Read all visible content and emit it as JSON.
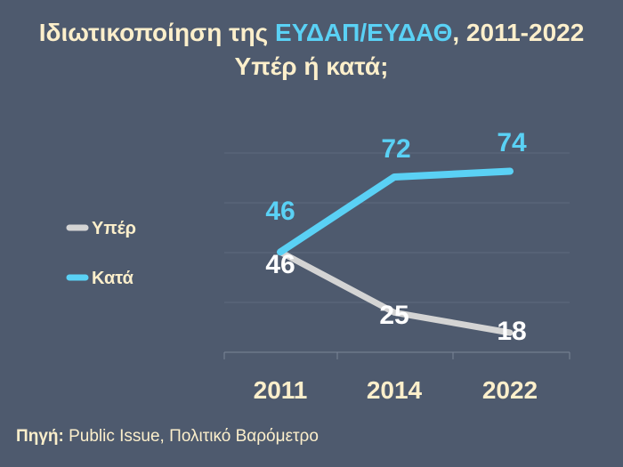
{
  "title": {
    "part1": "Ιδιωτικοποίηση της ",
    "highlight": "ΕΥΔΑΠ/ΕΥΔΑΘ",
    "part2": ", 2011-2022",
    "line2": "Υπέρ ή κατά;"
  },
  "source": {
    "label": "Πηγή:",
    "text": " Public Issue, Πολιτικό Βαρόμετρο"
  },
  "colors": {
    "background": "#4e5a6e",
    "title": "#fcefcb",
    "accent": "#5ad1f5",
    "yper": "#d4d4d4",
    "kata": "#5ad1f5"
  },
  "chart_data": {
    "type": "line",
    "categories": [
      "2011",
      "2014",
      "2022"
    ],
    "series": [
      {
        "name": "Υπέρ",
        "values": [
          46,
          25,
          18
        ],
        "color": "#d4d4d4"
      },
      {
        "name": "Κατά",
        "values": [
          46,
          72,
          74
        ],
        "color": "#5ad1f5"
      }
    ],
    "grid": true,
    "legend_position": "left"
  }
}
